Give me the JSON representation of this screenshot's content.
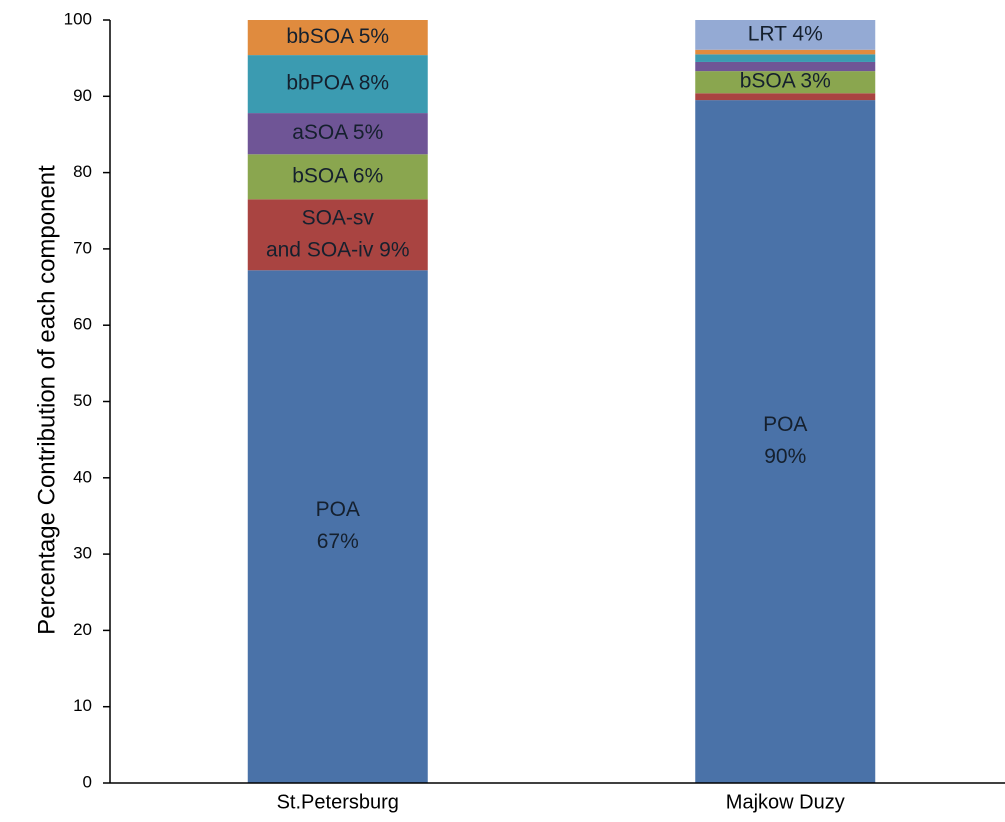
{
  "chart_data": {
    "type": "stacked_bar",
    "y_label": "Percentage Contribution of each component",
    "categories": [
      "St.Petersburg",
      "Majkow Duzy"
    ],
    "series": [
      {
        "color": "#4a72a8",
        "values": [
          67.2,
          89.5
        ],
        "value_labels": [
          [
            "POA",
            "67%"
          ],
          [
            "POA",
            "90%"
          ]
        ]
      },
      {
        "color": "#a94441",
        "values": [
          9.3,
          0.9
        ],
        "value_labels": [
          [
            "SOA-sv",
            "and SOA-iv 9%"
          ],
          null
        ]
      },
      {
        "color": "#8aa64f",
        "values": [
          5.9,
          2.9
        ],
        "value_labels": [
          [
            "bSOA 6%"
          ],
          [
            "bSOA 3%"
          ]
        ]
      },
      {
        "color": "#6f5596",
        "values": [
          5.4,
          1.2
        ],
        "value_labels": [
          [
            "aSOA 5%"
          ],
          null
        ]
      },
      {
        "color": "#3b9bb1",
        "values": [
          7.6,
          1.0
        ],
        "value_labels": [
          [
            "bbPOA 8%"
          ],
          null
        ]
      },
      {
        "color": "#e08b3e",
        "values": [
          4.6,
          0.6
        ],
        "value_labels": [
          [
            "bbSOA 5%"
          ],
          null
        ]
      },
      {
        "color": "#94aad4",
        "values": [
          0,
          3.9
        ],
        "value_labels": [
          null,
          [
            "LRT 4%"
          ]
        ]
      }
    ],
    "ylim": [
      0,
      100
    ],
    "yticks": [
      0,
      10,
      20,
      30,
      40,
      50,
      60,
      70,
      80,
      90,
      100
    ],
    "grid": false
  }
}
